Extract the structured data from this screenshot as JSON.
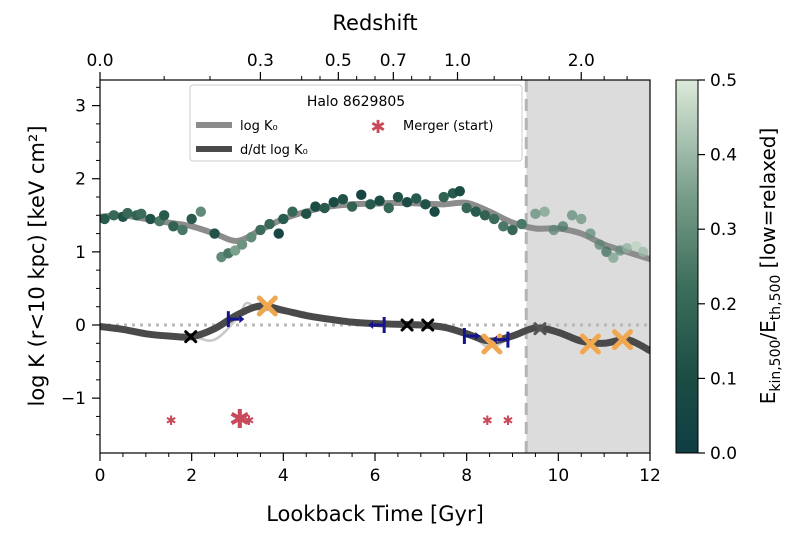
{
  "chart_data": {
    "type": "line",
    "title": "Halo 8629805",
    "xlabel": "Lookback Time [Gyr]",
    "ylabel": "log K (r<10 kpc) [keV cm²]",
    "top_axis_label": "Redshift",
    "colorbar_label": "E_kin,500/E_th,500 [low=relaxed]",
    "xlim": [
      0,
      12
    ],
    "ylim": [
      -1.75,
      3.35
    ],
    "x_ticks": [
      "0",
      "2",
      "4",
      "6",
      "8",
      "10",
      "12"
    ],
    "y_ticks": [
      "−1",
      "0",
      "1",
      "2",
      "3"
    ],
    "top_ticks": [
      {
        "label": "0.0",
        "x": 0.0
      },
      {
        "label": "0.3",
        "x": 3.5
      },
      {
        "label": "0.5",
        "x": 5.2
      },
      {
        "label": "0.7",
        "x": 6.4
      },
      {
        "label": "1.0",
        "x": 7.8
      },
      {
        "label": "2.0",
        "x": 10.5
      }
    ],
    "colorbar_ticks": [
      "0.0",
      "0.1",
      "0.2",
      "0.3",
      "0.4",
      "0.5"
    ],
    "colorbar_range": [
      0,
      0.5
    ],
    "shaded_region": {
      "x_start": 9.3,
      "x_end": 12
    },
    "vline_x": 9.3,
    "legend": {
      "title": "Halo 8629805",
      "entries": [
        "log K₀",
        "d/dt log K₀",
        "Merger (start)"
      ]
    },
    "series": [
      {
        "name": "log K₀",
        "x": [
          0.0,
          0.5,
          1.0,
          1.5,
          2.0,
          2.5,
          3.0,
          3.5,
          4.0,
          4.5,
          5.0,
          5.5,
          6.0,
          6.5,
          7.0,
          7.5,
          8.0,
          8.5,
          9.0,
          9.5,
          10.0,
          10.5,
          11.0,
          11.5,
          12.0
        ],
        "values": [
          1.48,
          1.5,
          1.45,
          1.4,
          1.35,
          1.25,
          1.15,
          1.3,
          1.45,
          1.55,
          1.62,
          1.65,
          1.66,
          1.67,
          1.66,
          1.65,
          1.67,
          1.55,
          1.4,
          1.32,
          1.32,
          1.25,
          1.1,
          1.0,
          0.9
        ]
      },
      {
        "name": "d/dt log K₀",
        "x": [
          0.0,
          0.5,
          1.0,
          1.5,
          2.0,
          2.5,
          3.0,
          3.5,
          4.0,
          4.5,
          5.0,
          5.5,
          6.0,
          6.5,
          7.0,
          7.5,
          8.0,
          8.5,
          9.0,
          9.5,
          10.0,
          10.5,
          11.0,
          11.5,
          12.0
        ],
        "values": [
          -0.02,
          -0.06,
          -0.12,
          -0.15,
          -0.16,
          -0.05,
          0.14,
          0.26,
          0.2,
          0.13,
          0.08,
          0.04,
          0.02,
          0.01,
          0.0,
          -0.03,
          -0.12,
          -0.22,
          -0.15,
          -0.04,
          -0.1,
          -0.22,
          -0.25,
          -0.2,
          -0.35
        ]
      },
      {
        "name": "d/dt log K₀ (raw)",
        "x": [
          0.0,
          1.0,
          2.0,
          2.5,
          3.0,
          3.2,
          3.5,
          4.0,
          5.0,
          6.0,
          7.0,
          8.0,
          8.5,
          9.0
        ],
        "values": [
          -0.02,
          -0.12,
          -0.16,
          -0.2,
          0.1,
          0.3,
          0.2,
          0.22,
          0.08,
          0.02,
          0.0,
          -0.12,
          -0.3,
          -0.15
        ]
      }
    ],
    "scatter": {
      "name": "log K₀ samples",
      "points": [
        {
          "x": 0.1,
          "y": 1.45,
          "c": 0.15
        },
        {
          "x": 0.3,
          "y": 1.5,
          "c": 0.2
        },
        {
          "x": 0.5,
          "y": 1.48,
          "c": 0.12
        },
        {
          "x": 0.6,
          "y": 1.53,
          "c": 0.2
        },
        {
          "x": 0.8,
          "y": 1.5,
          "c": 0.18
        },
        {
          "x": 0.9,
          "y": 1.52,
          "c": 0.22
        },
        {
          "x": 1.1,
          "y": 1.45,
          "c": 0.12
        },
        {
          "x": 1.3,
          "y": 1.42,
          "c": 0.25
        },
        {
          "x": 1.4,
          "y": 1.5,
          "c": 0.15
        },
        {
          "x": 1.6,
          "y": 1.35,
          "c": 0.18
        },
        {
          "x": 1.8,
          "y": 1.3,
          "c": 0.25
        },
        {
          "x": 2.0,
          "y": 1.45,
          "c": 0.15
        },
        {
          "x": 2.2,
          "y": 1.55,
          "c": 0.3
        },
        {
          "x": 2.5,
          "y": 1.25,
          "c": 0.12
        },
        {
          "x": 2.65,
          "y": 0.93,
          "c": 0.3
        },
        {
          "x": 2.8,
          "y": 0.98,
          "c": 0.25
        },
        {
          "x": 2.95,
          "y": 1.02,
          "c": 0.35
        },
        {
          "x": 3.1,
          "y": 1.1,
          "c": 0.32
        },
        {
          "x": 3.3,
          "y": 1.2,
          "c": 0.3
        },
        {
          "x": 3.5,
          "y": 1.3,
          "c": 0.22
        },
        {
          "x": 3.7,
          "y": 1.38,
          "c": 0.2
        },
        {
          "x": 3.9,
          "y": 1.25,
          "c": 0.05
        },
        {
          "x": 4.0,
          "y": 1.45,
          "c": 0.15
        },
        {
          "x": 4.2,
          "y": 1.55,
          "c": 0.2
        },
        {
          "x": 4.5,
          "y": 1.52,
          "c": 0.12
        },
        {
          "x": 4.7,
          "y": 1.62,
          "c": 0.1
        },
        {
          "x": 4.9,
          "y": 1.6,
          "c": 0.15
        },
        {
          "x": 5.1,
          "y": 1.68,
          "c": 0.08
        },
        {
          "x": 5.3,
          "y": 1.72,
          "c": 0.12
        },
        {
          "x": 5.5,
          "y": 1.62,
          "c": 0.18
        },
        {
          "x": 5.7,
          "y": 1.78,
          "c": 0.05
        },
        {
          "x": 5.9,
          "y": 1.65,
          "c": 0.15
        },
        {
          "x": 6.1,
          "y": 1.7,
          "c": 0.1
        },
        {
          "x": 6.3,
          "y": 1.6,
          "c": 0.2
        },
        {
          "x": 6.5,
          "y": 1.75,
          "c": 0.12
        },
        {
          "x": 6.7,
          "y": 1.68,
          "c": 0.1
        },
        {
          "x": 6.9,
          "y": 1.73,
          "c": 0.15
        },
        {
          "x": 7.1,
          "y": 1.65,
          "c": 0.12
        },
        {
          "x": 7.3,
          "y": 1.55,
          "c": 0.08
        },
        {
          "x": 7.5,
          "y": 1.75,
          "c": 0.18
        },
        {
          "x": 7.7,
          "y": 1.8,
          "c": 0.15
        },
        {
          "x": 7.85,
          "y": 1.83,
          "c": 0.1
        },
        {
          "x": 8.0,
          "y": 1.6,
          "c": 0.2
        },
        {
          "x": 8.2,
          "y": 1.55,
          "c": 0.15
        },
        {
          "x": 8.4,
          "y": 1.5,
          "c": 0.18
        },
        {
          "x": 8.6,
          "y": 1.45,
          "c": 0.22
        },
        {
          "x": 8.8,
          "y": 1.35,
          "c": 0.25
        },
        {
          "x": 9.0,
          "y": 1.3,
          "c": 0.2
        },
        {
          "x": 9.2,
          "y": 1.38,
          "c": 0.25
        },
        {
          "x": 9.5,
          "y": 1.52,
          "c": 0.3
        },
        {
          "x": 9.7,
          "y": 1.55,
          "c": 0.35
        },
        {
          "x": 9.9,
          "y": 1.3,
          "c": 0.28
        },
        {
          "x": 10.1,
          "y": 1.35,
          "c": 0.25
        },
        {
          "x": 10.3,
          "y": 1.5,
          "c": 0.3
        },
        {
          "x": 10.5,
          "y": 1.45,
          "c": 0.32
        },
        {
          "x": 10.7,
          "y": 1.25,
          "c": 0.3
        },
        {
          "x": 10.9,
          "y": 1.1,
          "c": 0.28
        },
        {
          "x": 11.05,
          "y": 1.0,
          "c": 0.22
        },
        {
          "x": 11.2,
          "y": 0.92,
          "c": 0.35
        },
        {
          "x": 11.35,
          "y": 1.02,
          "c": 0.3
        },
        {
          "x": 11.5,
          "y": 1.05,
          "c": 0.38
        },
        {
          "x": 11.7,
          "y": 1.08,
          "c": 0.45
        },
        {
          "x": 11.85,
          "y": 1.0,
          "c": 0.4
        }
      ]
    },
    "markers": {
      "black_x": [
        {
          "x": 1.98,
          "y": -0.16
        },
        {
          "x": 6.7,
          "y": 0.0
        },
        {
          "x": 7.15,
          "y": 0.0
        }
      ],
      "grey_x": [
        {
          "x": 9.6,
          "y": -0.05
        }
      ],
      "orange_x": [
        {
          "x": 3.65,
          "y": 0.26
        },
        {
          "x": 8.55,
          "y": -0.26
        },
        {
          "x": 10.7,
          "y": -0.26
        },
        {
          "x": 11.4,
          "y": -0.2
        }
      ],
      "blue_caret": [
        {
          "x": 2.8,
          "y": 0.08,
          "dir": "right"
        },
        {
          "x": 6.2,
          "y": 0.0,
          "dir": "left"
        },
        {
          "x": 7.95,
          "y": -0.15,
          "dir": "right"
        },
        {
          "x": 8.9,
          "y": -0.2,
          "dir": "left"
        }
      ],
      "merger_stars": [
        {
          "x": 1.55,
          "y": -1.3,
          "size": "small"
        },
        {
          "x": 3.05,
          "y": -1.3,
          "size": "large"
        },
        {
          "x": 3.25,
          "y": -1.3,
          "size": "small"
        },
        {
          "x": 8.45,
          "y": -1.3,
          "size": "small"
        },
        {
          "x": 8.9,
          "y": -1.3,
          "size": "small"
        }
      ]
    },
    "colors": {
      "line_logK": "#8c8c8c",
      "line_dlogK": "#4a4a4a",
      "raw_line": "#c8c8c8",
      "merger": "#c84a5a",
      "orange_x": "#f0a850",
      "blue_caret": "#14148c",
      "shade": "#dcdcdc",
      "cmap_low": "#0f3d44",
      "cmap_high": "#dce9da"
    }
  }
}
